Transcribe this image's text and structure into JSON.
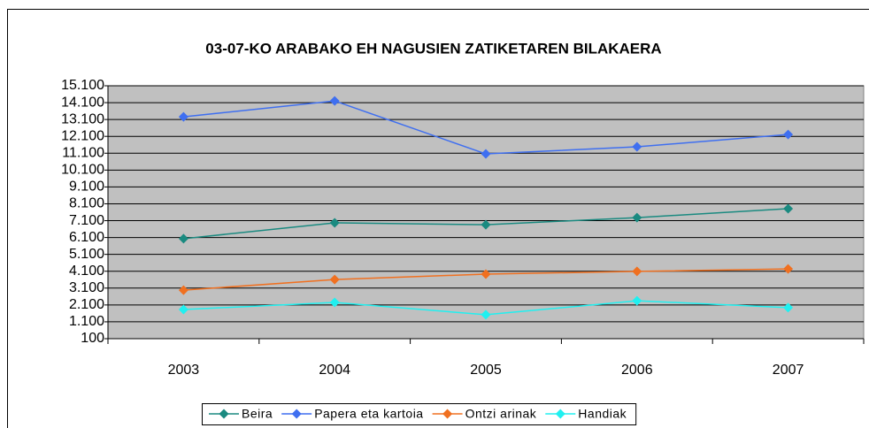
{
  "chart_data": {
    "type": "line",
    "title": "03-07-KO ARABAKO EH NAGUSIEN ZATIKETAREN BILAKAERA",
    "categories": [
      "2003",
      "2004",
      "2005",
      "2006",
      "2007"
    ],
    "series": [
      {
        "name": "Beira",
        "color": "#1a8a80",
        "values": [
          6030,
          6970,
          6860,
          7280,
          7810
        ]
      },
      {
        "name": "Papera eta kartoia",
        "color": "#3f6ff0",
        "values": [
          13260,
          14200,
          11060,
          11480,
          12210
        ]
      },
      {
        "name": "Ontzi arinak",
        "color": "#f07020",
        "values": [
          2980,
          3610,
          3930,
          4090,
          4240
        ]
      },
      {
        "name": "Handiak",
        "color": "#20f0f0",
        "values": [
          1830,
          2250,
          1520,
          2350,
          1940
        ]
      }
    ],
    "ylim": [
      100,
      15100
    ],
    "yticks": [
      100,
      {
        "value": 1100,
        "label": "1.100"
      },
      {
        "value": 2100,
        "label": "2.100"
      },
      {
        "value": 3100,
        "label": "3.100"
      },
      {
        "value": 4100,
        "label": "4.100"
      },
      {
        "value": 5100,
        "label": "5.100"
      },
      {
        "value": 6100,
        "label": "6.100"
      },
      {
        "value": 7100,
        "label": "7.100"
      },
      {
        "value": 8100,
        "label": "8.100"
      },
      {
        "value": 9100,
        "label": "9.100"
      },
      {
        "value": 10100,
        "label": "10.100"
      },
      {
        "value": 11100,
        "label": "11.100"
      },
      {
        "value": 12100,
        "label": "12.100"
      },
      {
        "value": 13100,
        "label": "13.100"
      },
      {
        "value": 14100,
        "label": "14.100"
      },
      {
        "value": 15100,
        "label": "15.100"
      }
    ],
    "grid": true,
    "legend": "bottom"
  }
}
